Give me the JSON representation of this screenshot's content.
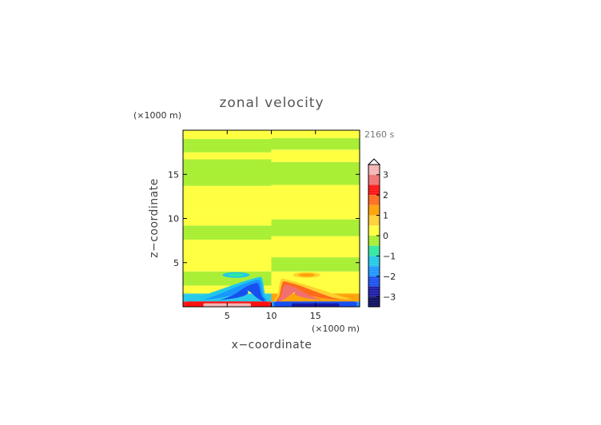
{
  "chart_data": {
    "type": "heatmap",
    "title": "zonal velocity",
    "xlabel": "x−coordinate",
    "ylabel": "z−coordinate",
    "x_unit": "(×1000 m)",
    "y_unit": "(×1000 m)",
    "time_label": "2160 s",
    "xlim": [
      0,
      20
    ],
    "ylim": [
      0,
      20
    ],
    "x_ticks": [
      5,
      10,
      15
    ],
    "y_ticks": [
      5,
      10,
      15
    ],
    "colorbar": {
      "ticks": [
        3,
        2,
        1,
        0,
        -1,
        -2,
        -3
      ],
      "tick_labels": [
        "3",
        "2",
        "1",
        "0",
        "−1",
        "−2",
        "−3"
      ],
      "range": [
        -3.5,
        3.5
      ],
      "levels": [
        {
          "from": 3.0,
          "to": 3.5,
          "color": "#f5b4b4"
        },
        {
          "from": 2.5,
          "to": 3.0,
          "color": "#f07070"
        },
        {
          "from": 2.0,
          "to": 2.5,
          "color": "#ff1010"
        },
        {
          "from": 1.5,
          "to": 2.0,
          "color": "#ff6a1a"
        },
        {
          "from": 1.0,
          "to": 1.5,
          "color": "#ffa000"
        },
        {
          "from": 0.5,
          "to": 1.0,
          "color": "#ffd030"
        },
        {
          "from": 0.0,
          "to": 0.5,
          "color": "#ffff3a"
        },
        {
          "from": -0.5,
          "to": 0.0,
          "color": "#a6ee2e"
        },
        {
          "from": -1.0,
          "to": -0.5,
          "color": "#2ee8a0"
        },
        {
          "from": -1.5,
          "to": -1.0,
          "color": "#20c8e8"
        },
        {
          "from": -2.0,
          "to": -1.5,
          "color": "#1a96ff"
        },
        {
          "from": -2.5,
          "to": -2.0,
          "color": "#1850f0"
        },
        {
          "from": -3.0,
          "to": -2.5,
          "color": "#1a1aa8"
        },
        {
          "from": -3.5,
          "to": -3.0,
          "color": "#0a0a60"
        }
      ]
    },
    "fields": {
      "bands": [
        {
          "x_range": [
            0,
            10
          ],
          "z_range": [
            0,
            0.6
          ],
          "value": 2.0
        },
        {
          "x_range": [
            0,
            10
          ],
          "z_range": [
            0.6,
            1.5
          ],
          "value": -1.2
        },
        {
          "x_range": [
            0,
            10
          ],
          "z_range": [
            1.5,
            2.4
          ],
          "value": 0.3
        },
        {
          "x_range": [
            0,
            10
          ],
          "z_range": [
            2.4,
            4.0
          ],
          "value": -0.2
        },
        {
          "x_range": [
            0,
            10
          ],
          "z_range": [
            4.0,
            7.6
          ],
          "value": 0.3
        },
        {
          "x_range": [
            0,
            10
          ],
          "z_range": [
            7.6,
            9.2
          ],
          "value": -0.2
        },
        {
          "x_range": [
            0,
            10
          ],
          "z_range": [
            9.2,
            13.7
          ],
          "value": 0.3
        },
        {
          "x_range": [
            0,
            10
          ],
          "z_range": [
            13.7,
            16.7
          ],
          "value": -0.2
        },
        {
          "x_range": [
            0,
            10
          ],
          "z_range": [
            16.7,
            17.5
          ],
          "value": 0.3
        },
        {
          "x_range": [
            0,
            10
          ],
          "z_range": [
            17.5,
            19.0
          ],
          "value": -0.2
        },
        {
          "x_range": [
            0,
            10
          ],
          "z_range": [
            19.0,
            20.0
          ],
          "value": 0.3
        },
        {
          "x_range": [
            10,
            20
          ],
          "z_range": [
            0,
            0.6
          ],
          "value": -2.0
        },
        {
          "x_range": [
            10,
            20
          ],
          "z_range": [
            0.6,
            1.5
          ],
          "value": 1.2
        },
        {
          "x_range": [
            10,
            20
          ],
          "z_range": [
            1.5,
            2.4
          ],
          "value": 0.3
        },
        {
          "x_range": [
            10,
            20
          ],
          "z_range": [
            2.4,
            4.0
          ],
          "value": 0.3
        },
        {
          "x_range": [
            10,
            20
          ],
          "z_range": [
            4.0,
            5.6
          ],
          "value": -0.2
        },
        {
          "x_range": [
            10,
            20
          ],
          "z_range": [
            5.6,
            8.0
          ],
          "value": 0.3
        },
        {
          "x_range": [
            10,
            20
          ],
          "z_range": [
            8.0,
            9.9
          ],
          "value": -0.2
        },
        {
          "x_range": [
            10,
            20
          ],
          "z_range": [
            9.9,
            13.8
          ],
          "value": 0.3
        },
        {
          "x_range": [
            10,
            20
          ],
          "z_range": [
            13.8,
            16.4
          ],
          "value": -0.2
        },
        {
          "x_range": [
            10,
            20
          ],
          "z_range": [
            16.4,
            17.8
          ],
          "value": 0.3
        },
        {
          "x_range": [
            10,
            20
          ],
          "z_range": [
            17.8,
            19.1
          ],
          "value": -0.2
        },
        {
          "x_range": [
            10,
            20
          ],
          "z_range": [
            19.1,
            20.0
          ],
          "value": 0.3
        }
      ],
      "features": [
        {
          "name": "left-arch",
          "value": -2.5,
          "x_range": [
            0.5,
            9.6
          ],
          "z_peak": 3.4
        },
        {
          "name": "right-arch",
          "value": 2.5,
          "x_range": [
            10.4,
            19.5
          ],
          "z_peak": 3.2
        },
        {
          "name": "left-cell",
          "value": -1.0,
          "x_center": 6.0,
          "z_center": 3.6
        },
        {
          "name": "right-cell",
          "value": 1.0,
          "x_center": 14.0,
          "z_center": 3.6
        },
        {
          "name": "surface-left",
          "value": 3.0,
          "x_range": [
            0.3,
            9.7
          ],
          "z_range": [
            0,
            0.6
          ]
        },
        {
          "name": "surface-right",
          "value": -3.0,
          "x_range": [
            10.3,
            19.7
          ],
          "z_range": [
            0,
            0.6
          ]
        }
      ]
    }
  }
}
